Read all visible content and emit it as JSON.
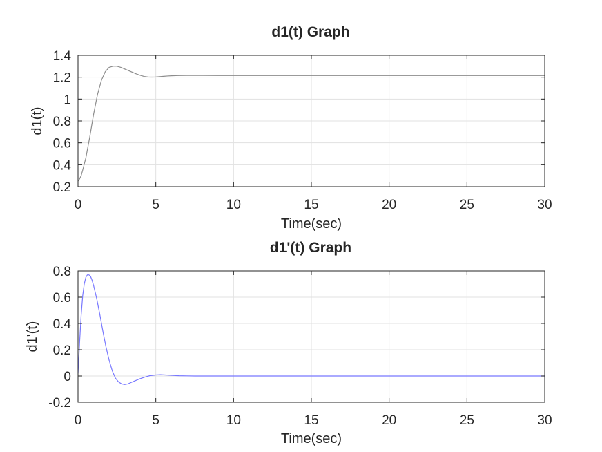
{
  "chart_data": [
    {
      "type": "line",
      "title": "d1(t) Graph",
      "xlabel": "Time(sec)",
      "ylabel": "d1(t)",
      "xlim": [
        0,
        30
      ],
      "ylim": [
        0.2,
        1.4
      ],
      "xticks": [
        "0",
        "5",
        "10",
        "15",
        "20",
        "25",
        "30"
      ],
      "yticks": [
        "0.2",
        "0.4",
        "0.6",
        "0.8",
        "1",
        "1.2",
        "1.4"
      ],
      "grid": true,
      "color": "#8c8c8c",
      "series": [
        {
          "x": [
            0,
            0.1,
            0.2,
            0.3,
            0.5,
            0.75,
            1.0,
            1.25,
            1.5,
            1.75,
            2.0,
            2.25,
            2.5,
            2.75,
            3.0,
            3.25,
            3.5,
            3.75,
            4.0,
            4.25,
            4.5,
            4.75,
            5.0,
            5.25,
            5.5,
            5.75,
            6.0,
            6.5,
            7.0,
            7.5,
            8.0,
            9.0,
            10,
            12,
            15,
            20,
            25,
            30
          ],
          "y": [
            0.25,
            0.27,
            0.3,
            0.35,
            0.46,
            0.65,
            0.86,
            1.04,
            1.17,
            1.25,
            1.29,
            1.3,
            1.3,
            1.29,
            1.275,
            1.26,
            1.245,
            1.23,
            1.217,
            1.207,
            1.202,
            1.201,
            1.202,
            1.205,
            1.208,
            1.211,
            1.213,
            1.215,
            1.216,
            1.216,
            1.216,
            1.215,
            1.215,
            1.215,
            1.215,
            1.215,
            1.215,
            1.215
          ]
        }
      ]
    },
    {
      "type": "line",
      "title": "d1'(t) Graph",
      "xlabel": "Time(sec)",
      "ylabel": "d1'(t)",
      "xlim": [
        0,
        30
      ],
      "ylim": [
        -0.2,
        0.8
      ],
      "xticks": [
        "0",
        "5",
        "10",
        "15",
        "20",
        "25",
        "30"
      ],
      "yticks": [
        "-0.2",
        "0",
        "0.2",
        "0.4",
        "0.6",
        "0.8"
      ],
      "grid": true,
      "color": "#7878ff",
      "series": [
        {
          "x": [
            0,
            0.1,
            0.2,
            0.3,
            0.4,
            0.5,
            0.6,
            0.7,
            0.8,
            0.9,
            1.0,
            1.2,
            1.4,
            1.6,
            1.8,
            2.0,
            2.2,
            2.4,
            2.6,
            2.8,
            3.0,
            3.2,
            3.4,
            3.6,
            3.8,
            4.0,
            4.3,
            4.6,
            5.0,
            5.3,
            5.6,
            6.0,
            6.5,
            7.0,
            7.5,
            8.0,
            9.0,
            10,
            12,
            15,
            20,
            25,
            30
          ],
          "y": [
            0.02,
            0.25,
            0.46,
            0.61,
            0.7,
            0.75,
            0.77,
            0.77,
            0.76,
            0.73,
            0.69,
            0.59,
            0.47,
            0.34,
            0.22,
            0.12,
            0.04,
            -0.015,
            -0.045,
            -0.06,
            -0.065,
            -0.06,
            -0.05,
            -0.04,
            -0.03,
            -0.02,
            -0.008,
            0.002,
            0.008,
            0.01,
            0.008,
            0.005,
            0.002,
            0.001,
            0.0,
            0.0,
            0.0,
            0.0,
            0.0,
            0.0,
            0.0,
            0.0,
            0.0
          ]
        }
      ]
    }
  ]
}
